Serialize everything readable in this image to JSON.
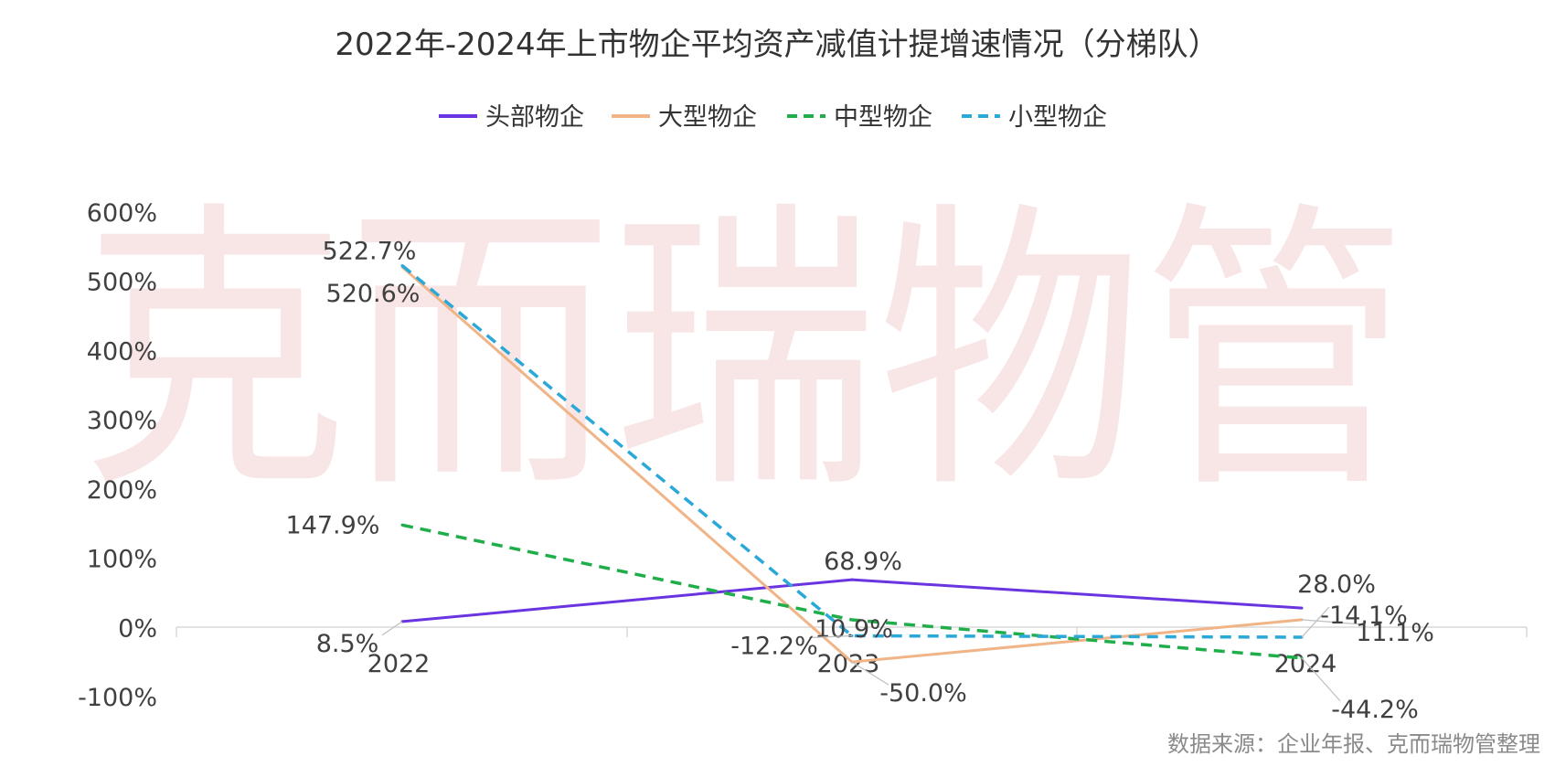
{
  "chart_data": {
    "type": "line",
    "title": "2022年-2024年上市物企平均资产减值计提增速情况（分梯队）",
    "categories": [
      "2022",
      "2023",
      "2024"
    ],
    "series": [
      {
        "name": "头部物企",
        "values": [
          8.5,
          68.9,
          28.0
        ],
        "labels": [
          "8.5%",
          "68.9%",
          "28.0%"
        ],
        "color": "#6a35e0",
        "dash": "solid"
      },
      {
        "name": "大型物企",
        "values": [
          520.6,
          -50.0,
          11.1
        ],
        "labels": [
          "520.6%",
          "-50.0%",
          "11.1%"
        ],
        "color": "#f0b486",
        "dash": "solid"
      },
      {
        "name": "中型物企",
        "values": [
          147.9,
          10.9,
          -44.2
        ],
        "labels": [
          "147.9%",
          "10.9%",
          "-44.2%"
        ],
        "color": "#1fae4a",
        "dash": "dashed"
      },
      {
        "name": "小型物企",
        "values": [
          522.7,
          -12.2,
          -14.1
        ],
        "labels": [
          "522.7%",
          "-12.2%",
          "-14.1%"
        ],
        "color": "#2aa8d8",
        "dash": "dashed"
      }
    ],
    "y_ticks": [
      "600%",
      "500%",
      "400%",
      "300%",
      "200%",
      "100%",
      "0%",
      "-100%"
    ],
    "ylim": [
      -100,
      600
    ],
    "legend_position": "top-center",
    "grid": false
  },
  "watermark": "克而瑞物管",
  "source": "数据来源：企业年报、克而瑞物管整理"
}
